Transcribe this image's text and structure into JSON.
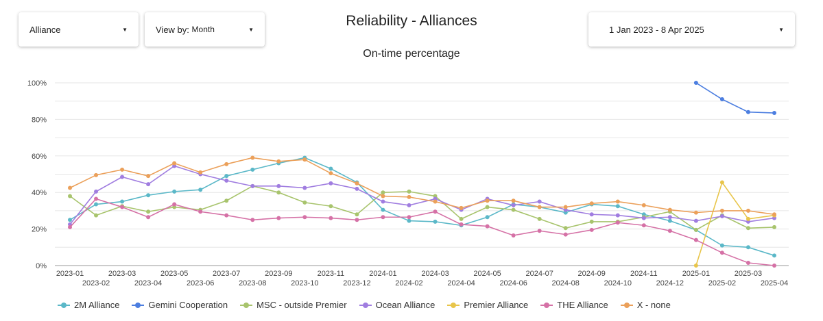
{
  "controls": {
    "alliance": "Alliance",
    "viewby_label": "View by:",
    "viewby_value": "Month",
    "date_range": "1 Jan 2023 - 8 Apr 2025"
  },
  "chart_data": {
    "type": "line",
    "title": "Reliability - Alliances",
    "subtitle": "On-time percentage",
    "ylim": [
      0,
      100
    ],
    "yticks": [
      "0%",
      "20%",
      "40%",
      "60%",
      "80%",
      "100%"
    ],
    "grid": true,
    "legend": "bottom",
    "categories": [
      "2023-01",
      "2023-02",
      "2023-03",
      "2023-04",
      "2023-05",
      "2023-06",
      "2023-07",
      "2023-08",
      "2023-09",
      "2023-10",
      "2023-11",
      "2023-12",
      "2024-01",
      "2024-02",
      "2024-03",
      "2024-04",
      "2024-05",
      "2024-06",
      "2024-07",
      "2024-08",
      "2024-09",
      "2024-10",
      "2024-11",
      "2024-12",
      "2025-01",
      "2025-02",
      "2025-03",
      "2025-04"
    ],
    "series": [
      {
        "name": "2M Alliance",
        "color": "#5bb8c8",
        "values": [
          25,
          33.5,
          35,
          38.5,
          40.5,
          41.5,
          49,
          52.5,
          56,
          59,
          53,
          45.5,
          30.5,
          24.5,
          24,
          22,
          26.5,
          33.5,
          32,
          29,
          33.5,
          32.5,
          28,
          24.5,
          19.5,
          11,
          10,
          5.5
        ]
      },
      {
        "name": "Gemini Cooperation",
        "color": "#4c7ee0",
        "values": [
          null,
          null,
          null,
          null,
          null,
          null,
          null,
          null,
          null,
          null,
          null,
          null,
          null,
          null,
          null,
          null,
          null,
          null,
          null,
          null,
          null,
          null,
          null,
          null,
          100,
          91,
          84,
          83.5
        ]
      },
      {
        "name": "MSC - outside Premier",
        "color": "#a8c46d",
        "values": [
          38,
          27.5,
          32.5,
          29.5,
          32,
          30.5,
          35.5,
          43.5,
          40,
          34.5,
          32.5,
          28,
          40,
          40.5,
          38,
          25.5,
          32,
          30.5,
          25.5,
          20.5,
          24,
          24,
          26.5,
          29.5,
          19.5,
          27.5,
          20.5,
          21
        ]
      },
      {
        "name": "Ocean Alliance",
        "color": "#a07de0",
        "values": [
          22.5,
          40.5,
          48.5,
          44.5,
          54.5,
          50,
          46.5,
          43.5,
          43.5,
          42.5,
          45,
          42,
          35,
          33,
          36.5,
          30.5,
          36.5,
          33,
          35,
          30.5,
          28,
          27.5,
          26,
          26.5,
          24.5,
          27,
          24,
          26
        ]
      },
      {
        "name": "Premier Alliance",
        "color": "#e8c54a",
        "values": [
          null,
          null,
          null,
          null,
          null,
          null,
          null,
          null,
          null,
          null,
          null,
          null,
          null,
          null,
          null,
          null,
          null,
          null,
          null,
          null,
          null,
          null,
          null,
          null,
          0,
          45.5,
          25.5,
          27.5
        ]
      },
      {
        "name": "THE Alliance",
        "color": "#d571a6",
        "values": [
          21,
          36.5,
          32,
          26.5,
          33.5,
          29.5,
          27.5,
          25,
          26,
          26.5,
          26,
          25,
          26.5,
          26.5,
          29.5,
          22.5,
          21.5,
          16.5,
          19,
          17,
          19.5,
          23.5,
          22,
          19,
          14,
          7,
          1.5,
          0
        ]
      },
      {
        "name": "X - none",
        "color": "#eba05a",
        "values": [
          42.5,
          49.5,
          52.5,
          49,
          56,
          51,
          55.5,
          59,
          57,
          58,
          50.5,
          45,
          38,
          37.5,
          35,
          31.5,
          35.5,
          35.5,
          32,
          32,
          34,
          35,
          33,
          30.5,
          29,
          30,
          30,
          28
        ]
      }
    ]
  }
}
